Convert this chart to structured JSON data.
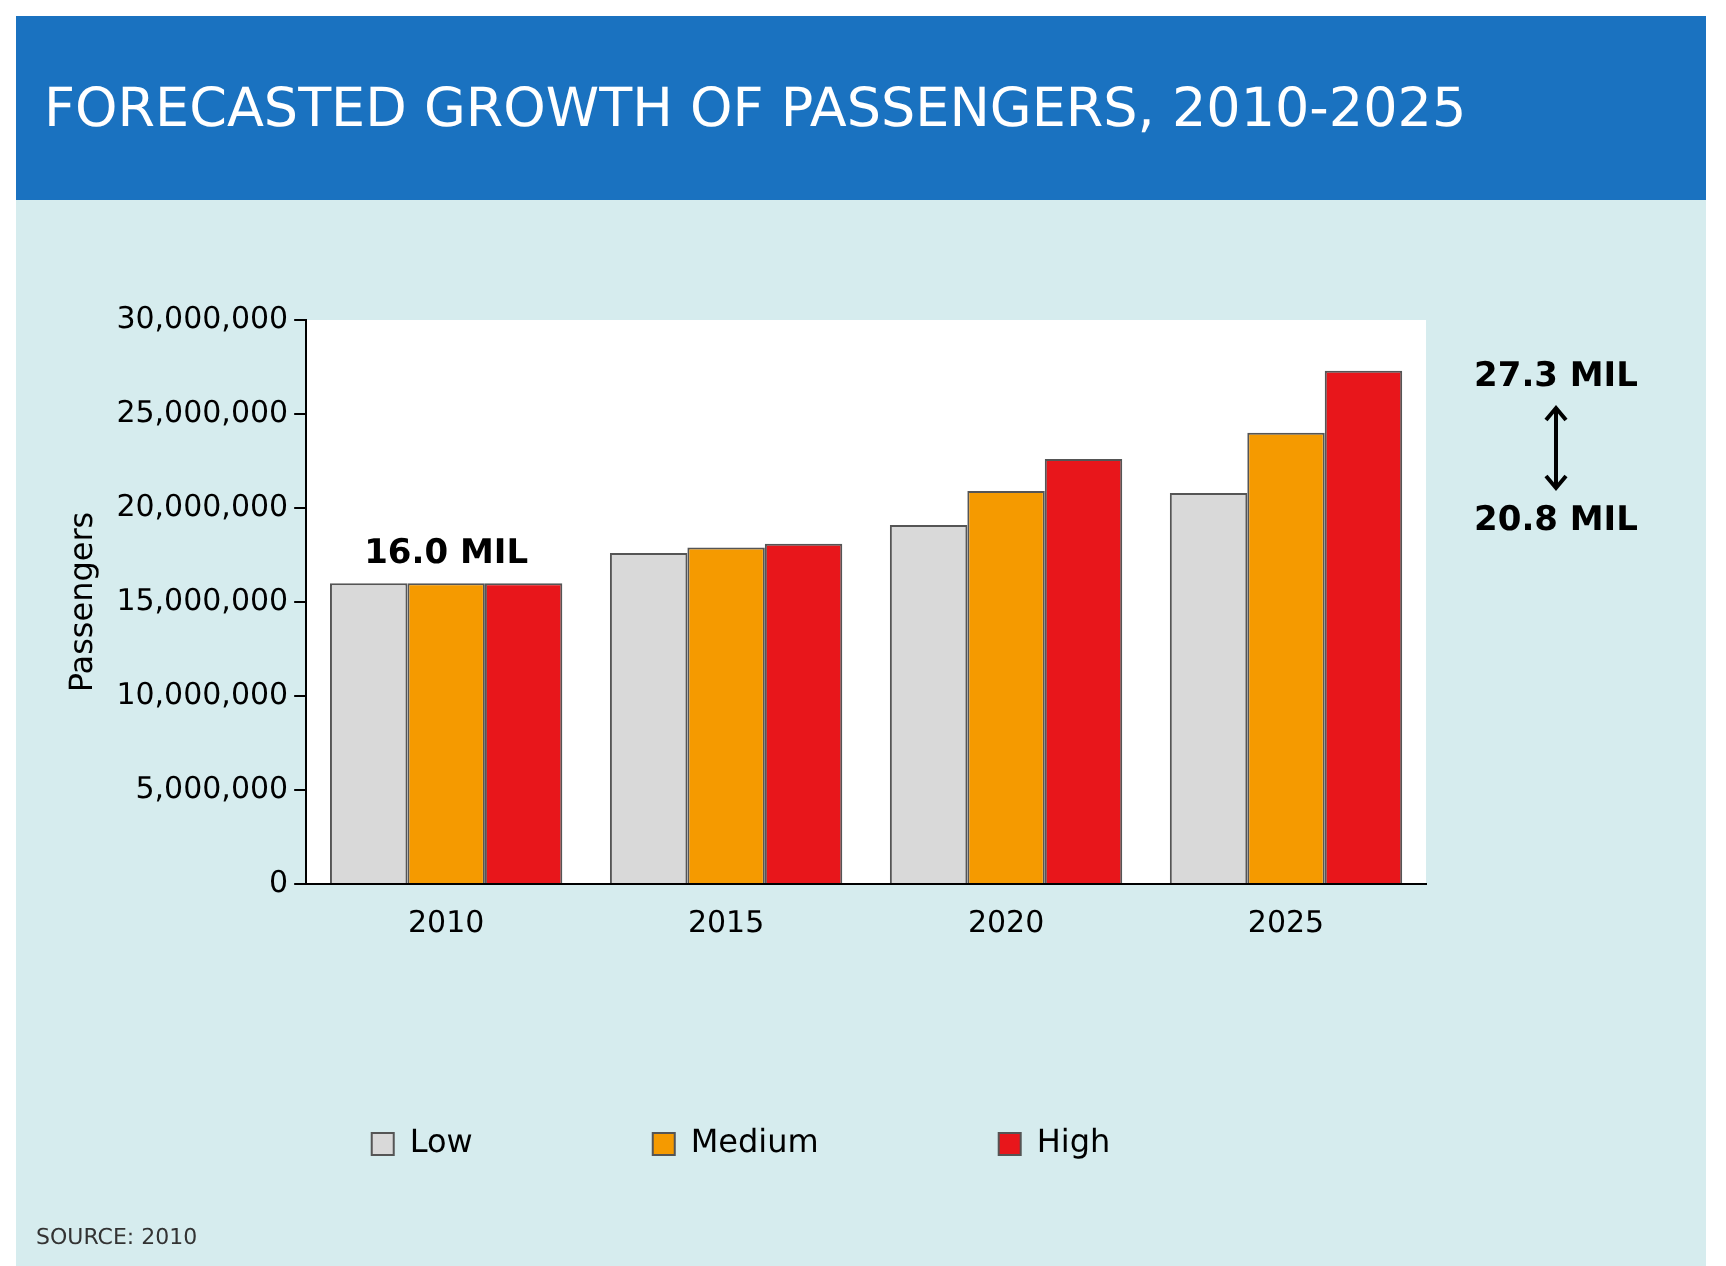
{
  "chart_data": {
    "type": "bar",
    "title": "FORECASTED GROWTH OF PASSENGERS, 2010-2025",
    "ylabel": "Passengers",
    "categories": [
      "2010",
      "2015",
      "2020",
      "2025"
    ],
    "series": [
      {
        "name": "Low",
        "color": "#d9d9d9",
        "values": [
          16000000,
          17600000,
          19100000,
          20800000
        ]
      },
      {
        "name": "Medium",
        "color": "#f59a00",
        "values": [
          16000000,
          17900000,
          20900000,
          24000000
        ]
      },
      {
        "name": "High",
        "color": "#e8161b",
        "values": [
          16000000,
          18100000,
          22600000,
          27300000
        ]
      }
    ],
    "ylim": [
      0,
      30000000
    ],
    "yticks": [
      0,
      {
        "value": 5000000,
        "label": "5,000,000"
      },
      {
        "value": 10000000,
        "label": "10,000,000"
      },
      {
        "value": 15000000,
        "label": "15,000,000"
      },
      {
        "value": 20000000,
        "label": "20,000,000"
      },
      {
        "value": 25000000,
        "label": "25,000,000"
      },
      {
        "value": 30000000,
        "label": "30,000,000"
      }
    ],
    "grid": false,
    "legend": "bottom",
    "annotations": [
      {
        "text": "16.0 MIL",
        "x": "2010",
        "y": 16000000
      },
      "27.3 MIL",
      "20.8 MIL",
      "SOURCE: 2010"
    ]
  }
}
